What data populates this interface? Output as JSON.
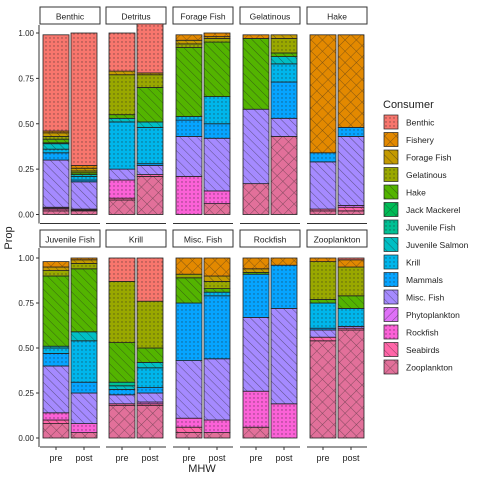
{
  "chart_data": {
    "type": "bar",
    "stacked": true,
    "xlabel": "MHW",
    "ylabel": "Prop",
    "ylim": [
      0,
      1
    ],
    "yticks": [
      "0.00",
      "0.25",
      "0.50",
      "0.75",
      "1.00"
    ],
    "x_categories": [
      "pre",
      "post"
    ],
    "legend": {
      "title": "Consumer",
      "position": "right",
      "entries": [
        "Benthic",
        "Fishery",
        "Forage Fish",
        "Gelatinous",
        "Hake",
        "Jack Mackerel",
        "Juvenile Fish",
        "Juvenile Salmon",
        "Krill",
        "Mammals",
        "Misc. Fish",
        "Phytoplankton",
        "Rockfish",
        "Seabirds",
        "Zooplankton"
      ],
      "colors": [
        "#F8766D",
        "#E38900",
        "#C49A00",
        "#99A800",
        "#53B400",
        "#00BC56",
        "#00C094",
        "#00BFC4",
        "#00B6EB",
        "#06A4FF",
        "#A58AFF",
        "#DF70F8",
        "#FB61D7",
        "#FF66A8",
        "#E2709A"
      ]
    },
    "panels": [
      {
        "name": "Benthic",
        "pre": {
          "Zooplankton": 0.02,
          "Seabirds": 0.01,
          "Rockfish": 0.005,
          "Phytoplankton": 0.005,
          "Misc. Fish": 0.26,
          "Mammals": 0.04,
          "Krill": 0.02,
          "Juvenile Salmon": 0.03,
          "Juvenile Fish": 0.005,
          "Hake": 0.02,
          "Gelatinous": 0.015,
          "Forage Fish": 0.02,
          "Fishery": 0.01,
          "Benthic": 0.53
        },
        "post": {
          "Zooplankton": 0.02,
          "Seabirds": 0.005,
          "Rockfish": 0.005,
          "Misc. Fish": 0.15,
          "Mammals": 0.01,
          "Krill": 0.02,
          "Juvenile Salmon": 0.01,
          "Hake": 0.01,
          "Gelatinous": 0.01,
          "Forage Fish": 0.015,
          "Fishery": 0.015,
          "Benthic": 0.73
        }
      },
      {
        "name": "Detritus",
        "pre": {
          "Zooplankton": 0.08,
          "Seabirds": 0.01,
          "Rockfish": 0.1,
          "Misc. Fish": 0.06,
          "Krill": 0.26,
          "Juvenile Salmon": 0.02,
          "Hake": 0.02,
          "Gelatinous": 0.22,
          "Forage Fish": 0.02,
          "Benthic": 0.21
        },
        "post": {
          "Zooplankton": 0.21,
          "Seabirds": 0.01,
          "Misc. Fish": 0.05,
          "Mammals": 0.01,
          "Krill": 0.2,
          "Juvenile Salmon": 0.03,
          "Hake": 0.19,
          "Gelatinous": 0.07,
          "Forage Fish": 0.01,
          "Benthic": 0.27
        }
      },
      {
        "name": "Forage Fish",
        "pre": {
          "Rockfish": 0.21,
          "Misc. Fish": 0.22,
          "Mammals": 0.09,
          "Krill": 0.02,
          "Hake": 0.38,
          "Gelatinous": 0.02,
          "Forage Fish": 0.02,
          "Fishery": 0.03
        },
        "post": {
          "Zooplankton": 0.06,
          "Rockfish": 0.07,
          "Misc. Fish": 0.29,
          "Mammals": 0.08,
          "Krill": 0.15,
          "Hake": 0.3,
          "Gelatinous": 0.02,
          "Forage Fish": 0.01,
          "Fishery": 0.02
        }
      },
      {
        "name": "Gelatinous",
        "pre": {
          "Zooplankton": 0.17,
          "Misc. Fish": 0.41,
          "Hake": 0.39,
          "Fishery": 0.02
        },
        "post": {
          "Zooplankton": 0.43,
          "Misc. Fish": 0.1,
          "Mammals": 0.2,
          "Juvenile Salmon": 0.04,
          "Hake": 0.02,
          "Gelatinous": 0.08,
          "Forage Fish": 0.02,
          "Krill": 0.1
        }
      },
      {
        "name": "Hake",
        "pre": {
          "Zooplankton": 0.02,
          "Seabirds": 0.01,
          "Misc. Fish": 0.26,
          "Mammals": 0.05,
          "Fishery": 0.65
        },
        "post": {
          "Zooplankton": 0.02,
          "Seabirds": 0.02,
          "Phytoplankton": 0.01,
          "Misc. Fish": 0.38,
          "Mammals": 0.05,
          "Fishery": 0.51
        }
      },
      {
        "name": "Juvenile Fish",
        "pre": {
          "Zooplankton": 0.08,
          "Seabirds": 0.02,
          "Rockfish": 0.04,
          "Misc. Fish": 0.26,
          "Mammals": 0.07,
          "Juvenile Salmon": 0.01,
          "Krill": 0.03,
          "Hake": 0.39,
          "Gelatinous": 0.03,
          "Forage Fish": 0.02,
          "Fishery": 0.03
        },
        "post": {
          "Zooplankton": 0.03,
          "Rockfish": 0.05,
          "Misc. Fish": 0.17,
          "Mammals": 0.06,
          "Juvenile Salmon": 0.05,
          "Krill": 0.23,
          "Hake": 0.35,
          "Gelatinous": 0.03,
          "Forage Fish": 0.02,
          "Fishery": 0.01
        }
      },
      {
        "name": "Krill",
        "pre": {
          "Zooplankton": 0.18,
          "Seabirds": 0.01,
          "Misc. Fish": 0.05,
          "Mammals": 0.03,
          "Juvenile Salmon": 0.02,
          "Juvenile Fish": 0.02,
          "Hake": 0.22,
          "Gelatinous": 0.34,
          "Benthic": 0.13
        },
        "post": {
          "Zooplankton": 0.18,
          "Seabirds": 0.01,
          "Phytoplankton": 0.01,
          "Misc. Fish": 0.05,
          "Mammals": 0.03,
          "Krill": 0.11,
          "Juvenile Salmon": 0.03,
          "Hake": 0.08,
          "Gelatinous": 0.26,
          "Benthic": 0.24
        }
      },
      {
        "name": "Misc. Fish",
        "pre": {
          "Zooplankton": 0.03,
          "Seabirds": 0.03,
          "Rockfish": 0.05,
          "Misc. Fish": 0.32,
          "Mammals": 0.32,
          "Hake": 0.14,
          "Gelatinous": 0.02,
          "Fishery": 0.09
        },
        "post": {
          "Zooplankton": 0.03,
          "Rockfish": 0.07,
          "Misc. Fish": 0.34,
          "Mammals": 0.35,
          "Krill": 0.02,
          "Hake": 0.02,
          "Gelatinous": 0.04,
          "Forage Fish": 0.03,
          "Fishery": 0.1
        }
      },
      {
        "name": "Rockfish",
        "pre": {
          "Zooplankton": 0.06,
          "Rockfish": 0.2,
          "Misc. Fish": 0.41,
          "Mammals": 0.24,
          "Hake": 0.01,
          "Forage Fish": 0.02,
          "Fishery": 0.06
        },
        "post": {
          "Rockfish": 0.19,
          "Misc. Fish": 0.53,
          "Mammals": 0.24,
          "Fishery": 0.04
        }
      },
      {
        "name": "Zooplankton",
        "pre": {
          "Zooplankton": 0.54,
          "Misc. Fish": 0.04,
          "Krill": 0.14,
          "Mammals": 0.01,
          "Hake": 0.02,
          "Gelatinous": 0.21,
          "Fishery": 0.02,
          "Seabirds": 0.02
        },
        "post": {
          "Zooplankton": 0.6,
          "Seabirds": 0.01,
          "Misc. Fish": 0.01,
          "Krill": 0.1,
          "Hake": 0.07,
          "Gelatinous": 0.16,
          "Fishery": 0.04,
          "Benthic": 0.01
        }
      }
    ]
  }
}
